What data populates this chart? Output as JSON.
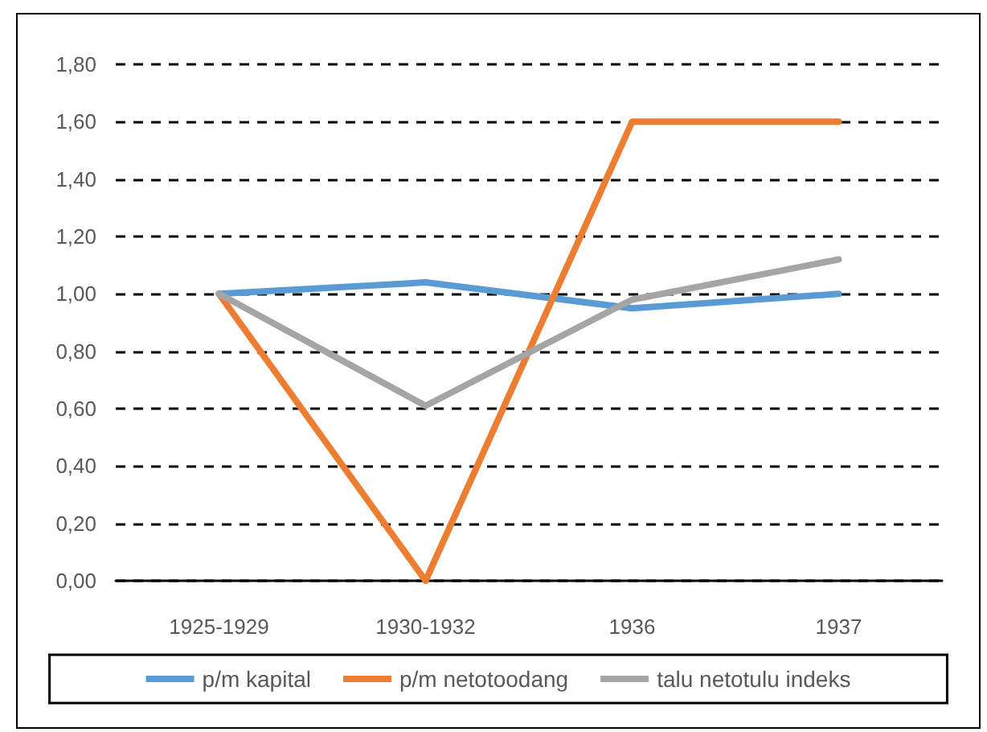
{
  "chart_data": {
    "type": "line",
    "categories": [
      "1925-1929",
      "1930-1932",
      "1936",
      "1937"
    ],
    "series": [
      {
        "name": "p/m kapital",
        "color": "#5b9bd5",
        "values": [
          1.0,
          1.04,
          0.95,
          1.0
        ]
      },
      {
        "name": "p/m netotoodang",
        "color": "#ed7d31",
        "values": [
          1.0,
          0.0,
          1.6,
          1.6
        ]
      },
      {
        "name": "talu netotulu indeks",
        "color": "#a5a5a5",
        "values": [
          1.0,
          0.61,
          0.98,
          1.12
        ]
      }
    ],
    "ylim": [
      0,
      1.8
    ],
    "yticks": [
      {
        "value": 0,
        "label": "0,00"
      },
      {
        "value": 0.2,
        "label": "0,20"
      },
      {
        "value": 0.4,
        "label": "0,40"
      },
      {
        "value": 0.6,
        "label": "0,60"
      },
      {
        "value": 0.8,
        "label": "0,80"
      },
      {
        "value": 1,
        "label": "1,00"
      },
      {
        "value": 1.2,
        "label": "1,20"
      },
      {
        "value": 1.4,
        "label": "1,40"
      },
      {
        "value": 1.6,
        "label": "1,60"
      },
      {
        "value": 1.8,
        "label": "1,80"
      }
    ],
    "grid": "y",
    "legend": "bottom",
    "marker": "none",
    "line_style": "solid"
  }
}
